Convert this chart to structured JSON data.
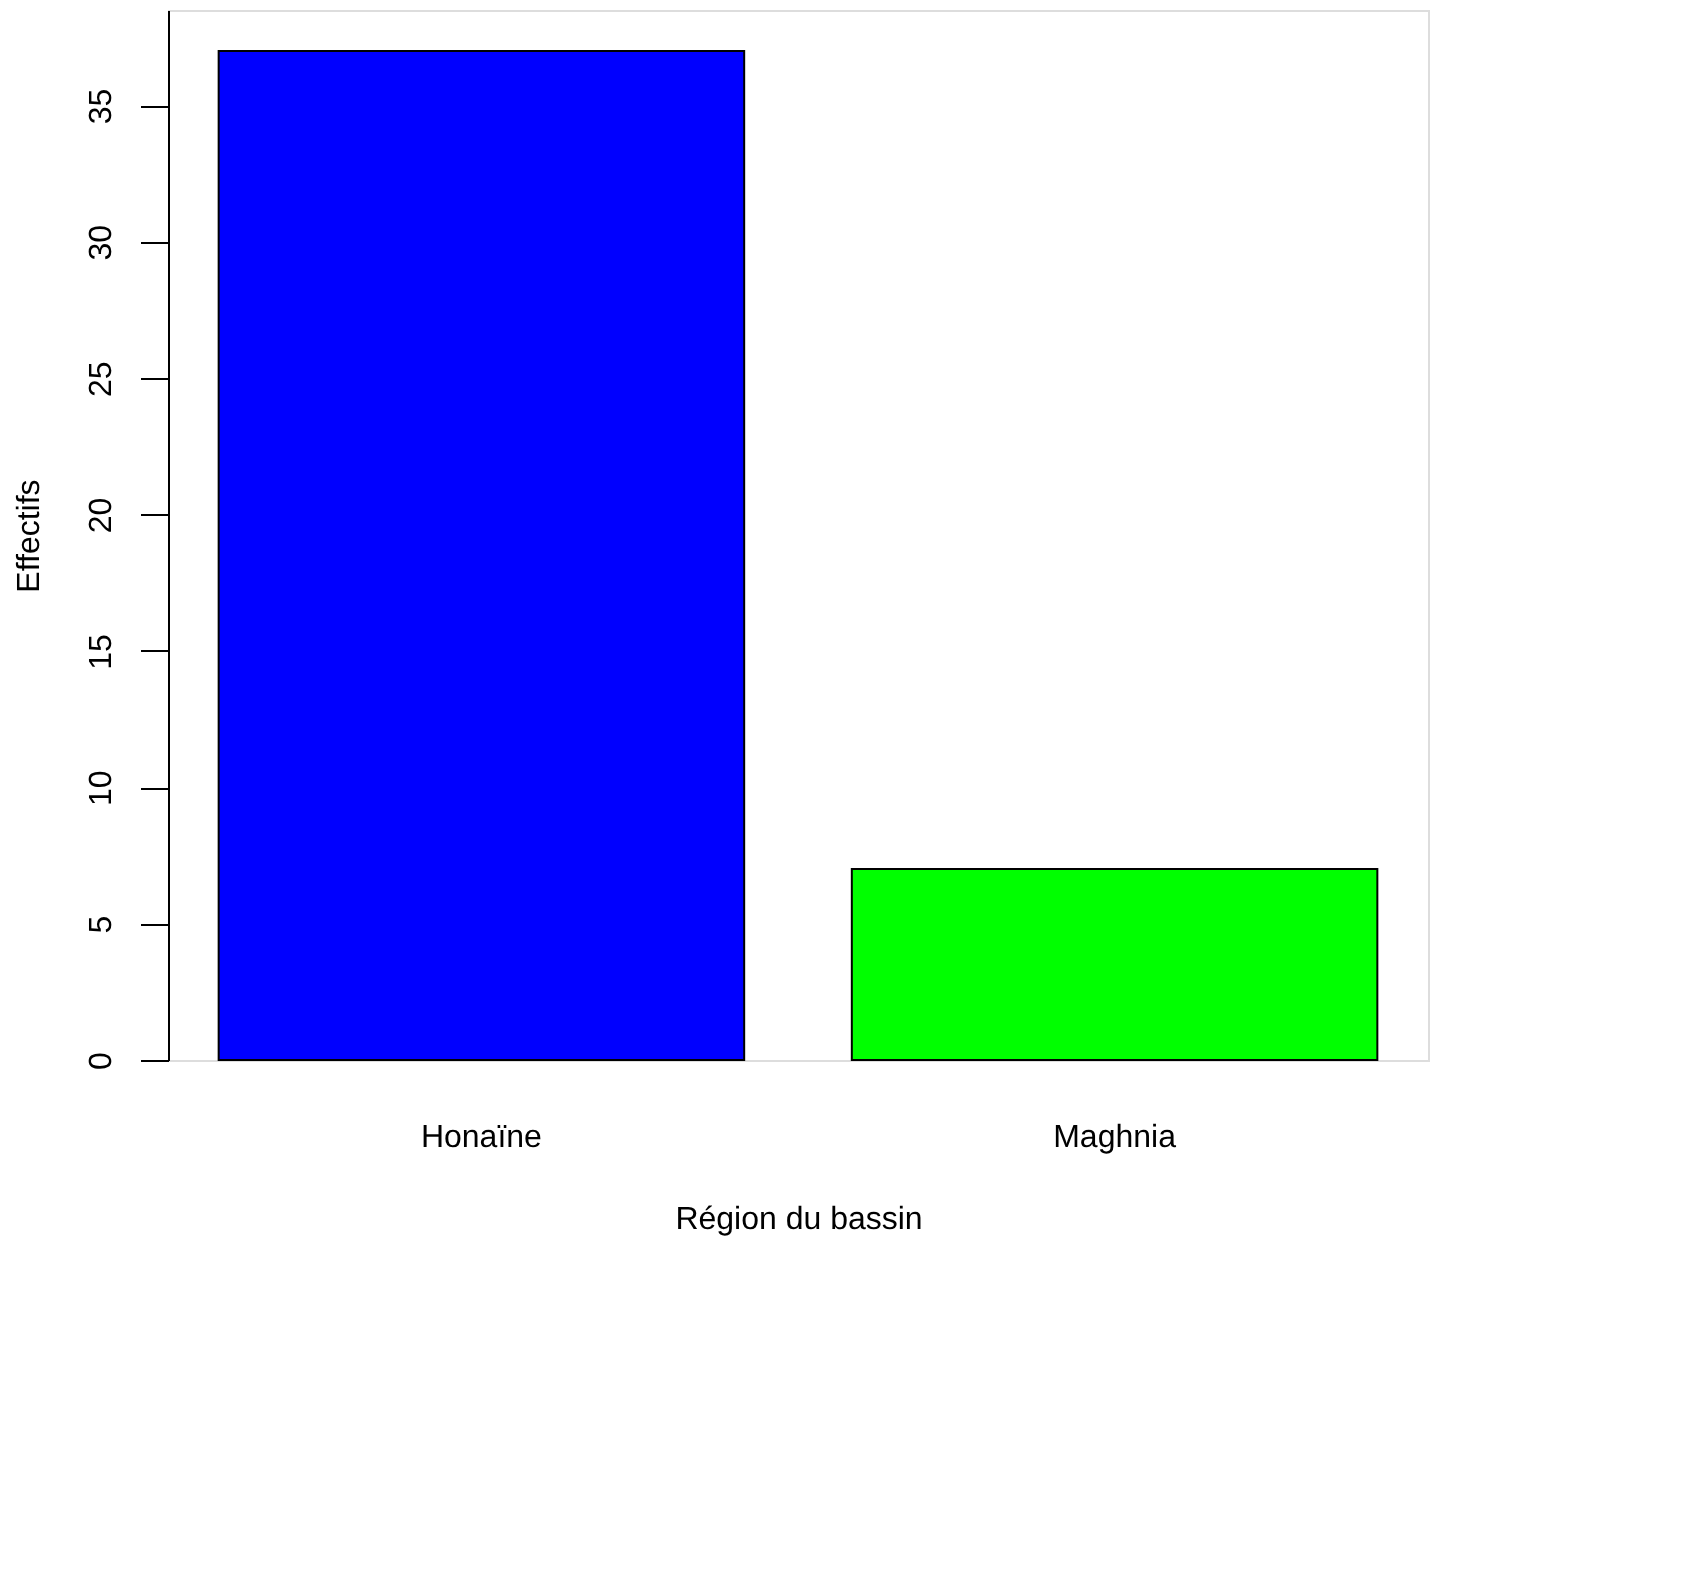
{
  "chart_data": {
    "type": "bar",
    "xlabel": "Région du bassin",
    "ylabel": "Effectifs",
    "categories": [
      "Honaïne",
      "Maghnia"
    ],
    "values": [
      37,
      7
    ],
    "colors": [
      "#0000ff",
      "#00ff00"
    ],
    "ylim": [
      0,
      38.5
    ],
    "yticks": [
      0,
      5,
      10,
      15,
      20,
      25,
      30,
      35
    ],
    "grid": false
  }
}
